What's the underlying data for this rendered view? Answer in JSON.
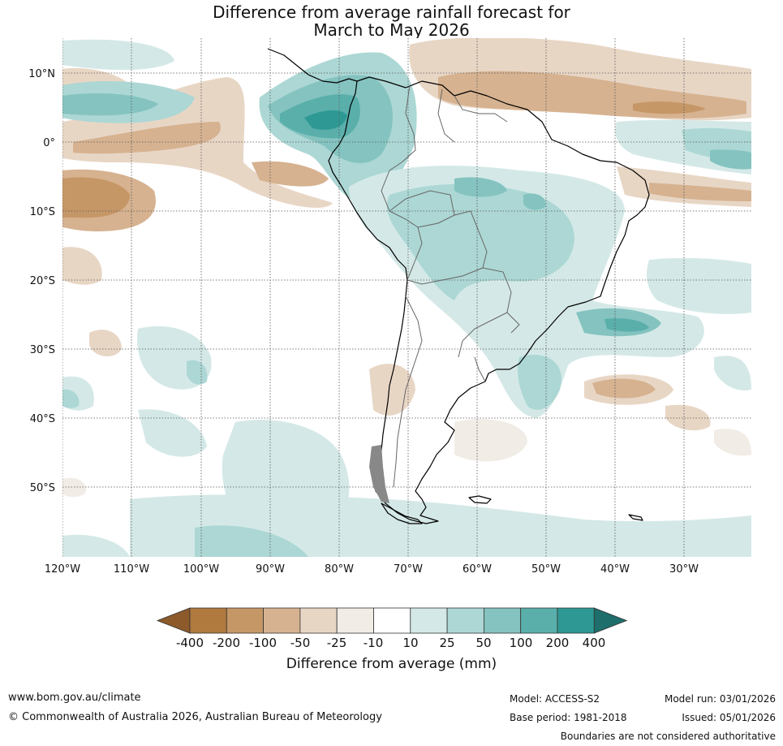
{
  "title_line1": "Difference from average rainfall forecast for",
  "title_line2": "March to May 2026",
  "lat_labels": [
    "10°N",
    "0°",
    "10°S",
    "20°S",
    "30°S",
    "40°S",
    "50°S"
  ],
  "lon_labels": [
    "120°W",
    "110°W",
    "100°W",
    "90°W",
    "80°W",
    "70°W",
    "60°W",
    "50°W",
    "40°W",
    "30°W"
  ],
  "colorbar": {
    "labels": [
      "-400",
      "-200",
      "-100",
      "-50",
      "-25",
      "-10",
      "10",
      "25",
      "50",
      "100",
      "200",
      "400"
    ],
    "colors": [
      "#8c5a2b",
      "#b07a3f",
      "#c69766",
      "#d6b290",
      "#e8d6c5",
      "#f2ece6",
      "#ffffff",
      "#d4e9e7",
      "#acd7d4",
      "#84c3c0",
      "#5aafab",
      "#2e9994",
      "#1e6e6b"
    ],
    "title": "Difference from average (mm)"
  },
  "footer": {
    "url": "www.bom.gov.au/climate",
    "copyright": "© Commonwealth of Australia 2026, Australian Bureau of Meteorology",
    "model": "Model: ACCESS-S2",
    "base_period": "Base period: 1981-2018",
    "model_run": "Model run: 03/01/2026",
    "issued": "Issued: 05/01/2026",
    "disclaimer": "Boundaries are not considered authoritative"
  }
}
